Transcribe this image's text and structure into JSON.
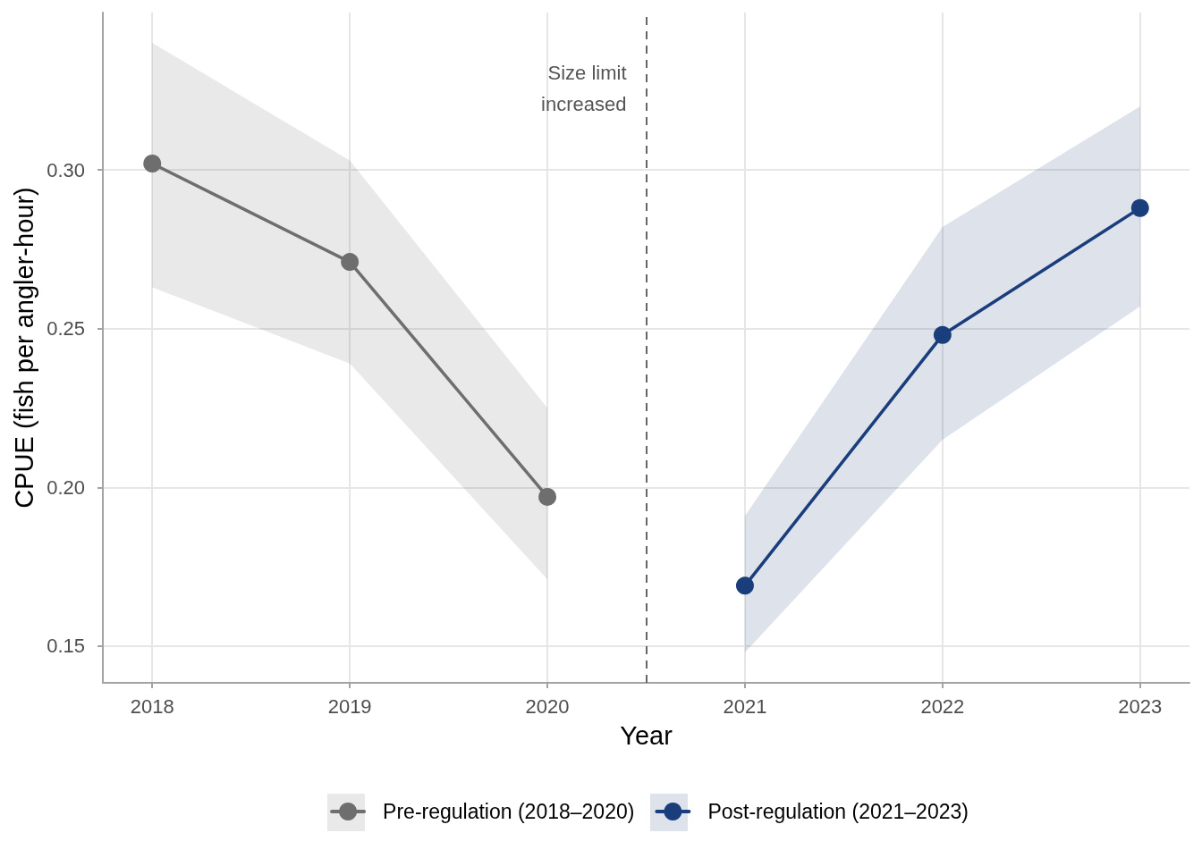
{
  "chart_data": {
    "type": "line",
    "xlabel": "Year",
    "ylabel": "CPUE (fish per angler-hour)",
    "xlim": [
      2017.75,
      2023.25
    ],
    "xticks": [
      2018,
      2019,
      2020,
      2021,
      2022,
      2023
    ],
    "ylim": [
      0.1384,
      0.3496
    ],
    "yticks": [
      0.15,
      {
        "value": 0.2,
        "label": "0.20"
      },
      0.25,
      {
        "value": 0.3,
        "label": "0.30"
      }
    ],
    "series": [
      {
        "name": "Pre-regulation (2018–2020)",
        "color": "#6e6e6e",
        "x": [
          2018,
          2019,
          2020
        ],
        "values": [
          0.302,
          0.271,
          0.197
        ],
        "lower": [
          0.263,
          0.239,
          0.171
        ],
        "upper": [
          0.34,
          0.303,
          0.225
        ]
      },
      {
        "name": "Post-regulation (2021–2023)",
        "color": "#1a3d7c",
        "x": [
          2021,
          2022,
          2023
        ],
        "values": [
          0.169,
          0.248,
          0.288
        ],
        "lower": [
          0.148,
          0.215,
          0.257
        ],
        "upper": [
          0.191,
          0.282,
          0.32
        ]
      }
    ],
    "ref_lines": [
      {
        "axis": "x",
        "value": 2020.5,
        "label": "Size limit\nincreased",
        "color": "#666666",
        "line_style": "dashed"
      }
    ],
    "grid": true,
    "legend": "bottom",
    "marker": "circle",
    "line_style": "solid"
  }
}
